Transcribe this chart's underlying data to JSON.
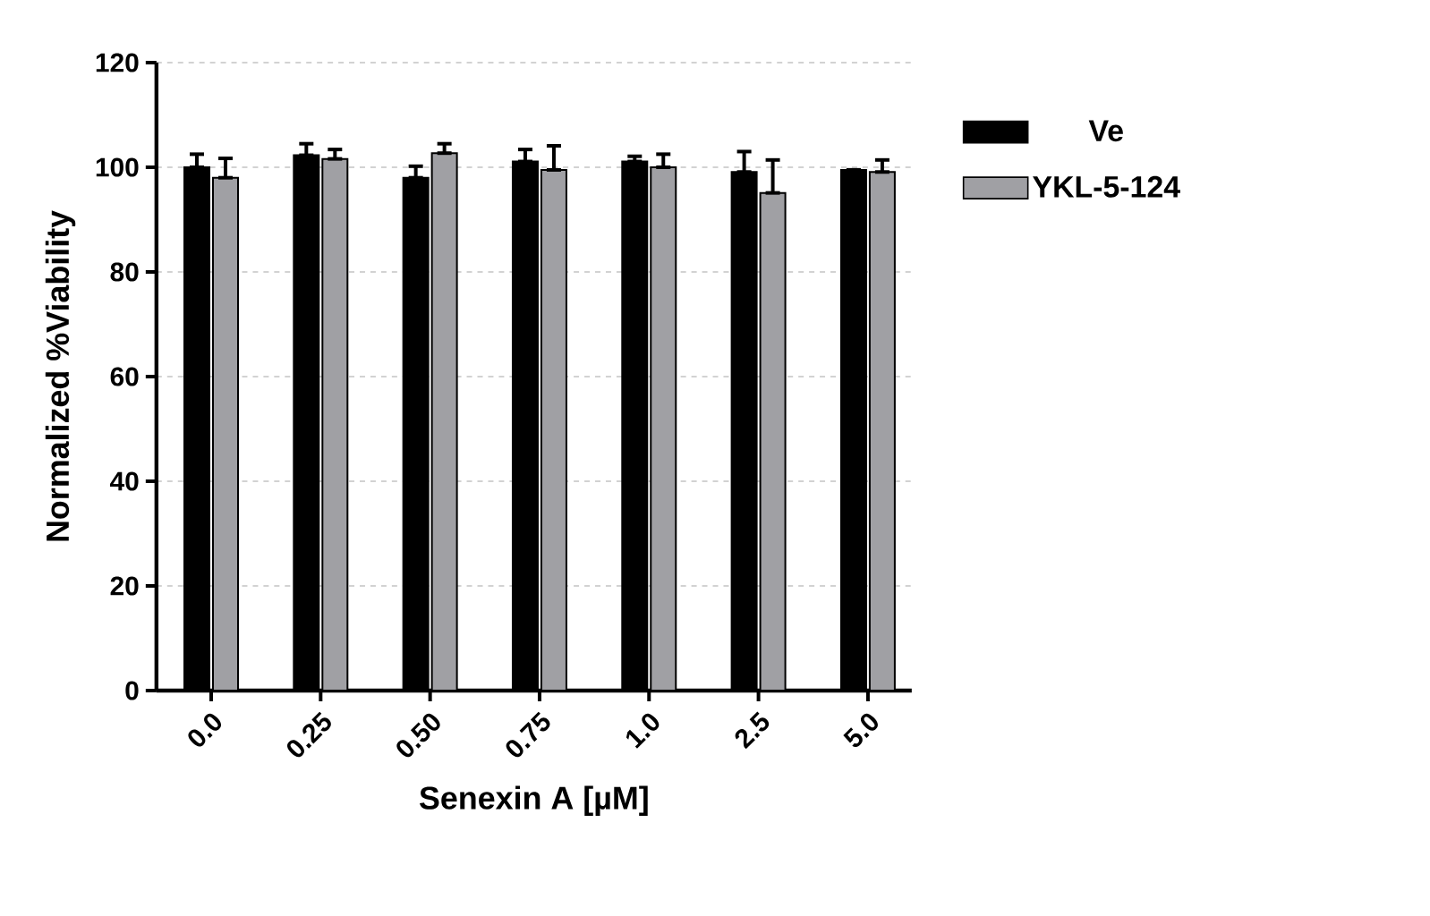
{
  "chart_data": {
    "type": "bar",
    "xlabel": "Senexin A [µM]",
    "ylabel": "Normalized %Viability",
    "categories": [
      "0.0",
      "0.25",
      "0.50",
      "0.75",
      "1.0",
      "2.5",
      "5.0"
    ],
    "series": [
      {
        "name": "Ve",
        "color": "#000000",
        "values": [
          100,
          102.3,
          98,
          101.1,
          101.1,
          99.1,
          99.5
        ],
        "errors": [
          [
            100,
            102.5
          ],
          [
            102.3,
            104.5
          ],
          [
            98,
            100.2
          ],
          [
            101.1,
            103.4
          ],
          [
            101.1,
            102.1
          ],
          [
            99.1,
            103
          ],
          null
        ]
      },
      {
        "name": "YKL-5-124",
        "color": "#a0a0a4",
        "values": [
          98,
          101.6,
          102.7,
          99.5,
          100,
          95.1,
          99.1
        ],
        "errors": [
          [
            98,
            101.7
          ],
          [
            101.6,
            103.4
          ],
          [
            102.7,
            104.5
          ],
          [
            99.5,
            104.1
          ],
          [
            100,
            102.5
          ],
          [
            95.1,
            101.4
          ],
          [
            99.1,
            101.4
          ]
        ]
      }
    ],
    "ylim": [
      0,
      120
    ],
    "yticks": [
      0,
      20,
      40,
      60,
      80,
      100,
      120
    ],
    "grid": "y",
    "legend": "right"
  }
}
